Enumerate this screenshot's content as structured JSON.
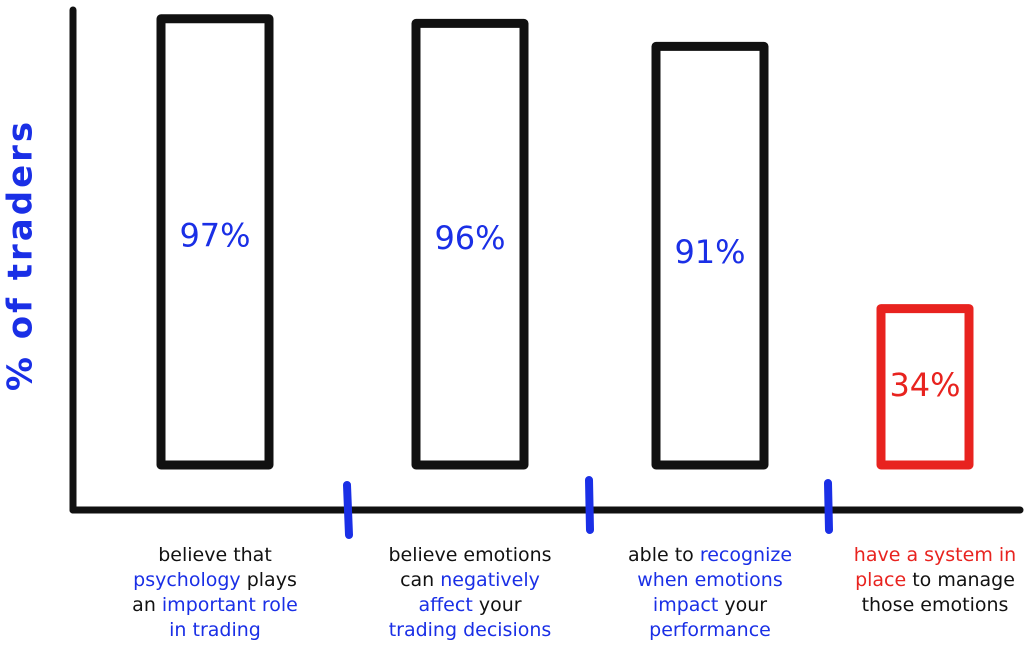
{
  "chart_data": {
    "type": "bar",
    "y_label": "% of traders",
    "label_color": "#1a2fe6",
    "categories": [
      [
        [
          {
            "text": "believe that",
            "color": "#111111"
          }
        ],
        [
          {
            "text": "psychology",
            "color": "#1a2fe6"
          },
          {
            "text": " plays",
            "color": "#111111"
          }
        ],
        [
          {
            "text": "an ",
            "color": "#111111"
          },
          {
            "text": "important role",
            "color": "#1a2fe6"
          }
        ],
        [
          {
            "text": "in trading",
            "color": "#1a2fe6"
          }
        ]
      ],
      [
        [
          {
            "text": "believe emotions",
            "color": "#111111"
          }
        ],
        [
          {
            "text": "can ",
            "color": "#111111"
          },
          {
            "text": "negatively",
            "color": "#1a2fe6"
          }
        ],
        [
          {
            "text": "affect",
            "color": "#1a2fe6"
          },
          {
            "text": " your",
            "color": "#111111"
          }
        ],
        [
          {
            "text": "trading decisions",
            "color": "#1a2fe6"
          }
        ]
      ],
      [
        [
          {
            "text": "able to ",
            "color": "#111111"
          },
          {
            "text": "recognize",
            "color": "#1a2fe6"
          }
        ],
        [
          {
            "text": "when emotions",
            "color": "#1a2fe6"
          }
        ],
        [
          {
            "text": "impact",
            "color": "#1a2fe6"
          },
          {
            "text": " your",
            "color": "#111111"
          }
        ],
        [
          {
            "text": "performance",
            "color": "#1a2fe6"
          }
        ]
      ],
      [
        [
          {
            "text": "have a system in",
            "color": "#e8231f"
          }
        ],
        [
          {
            "text": "place",
            "color": "#e8231f"
          },
          {
            "text": " to manage",
            "color": "#111111"
          }
        ],
        [
          {
            "text": "those emotions",
            "color": "#111111"
          }
        ]
      ]
    ],
    "values": [
      97,
      96,
      91,
      34
    ],
    "value_labels": [
      "97%",
      "96%",
      "91%",
      "34%"
    ],
    "colors": [
      "#111111",
      "#111111",
      "#111111",
      "#e8231f"
    ],
    "value_label_colors": [
      "#1a2fe6",
      "#1a2fe6",
      "#1a2fe6",
      "#e8231f"
    ],
    "ylim": [
      0,
      100
    ]
  }
}
